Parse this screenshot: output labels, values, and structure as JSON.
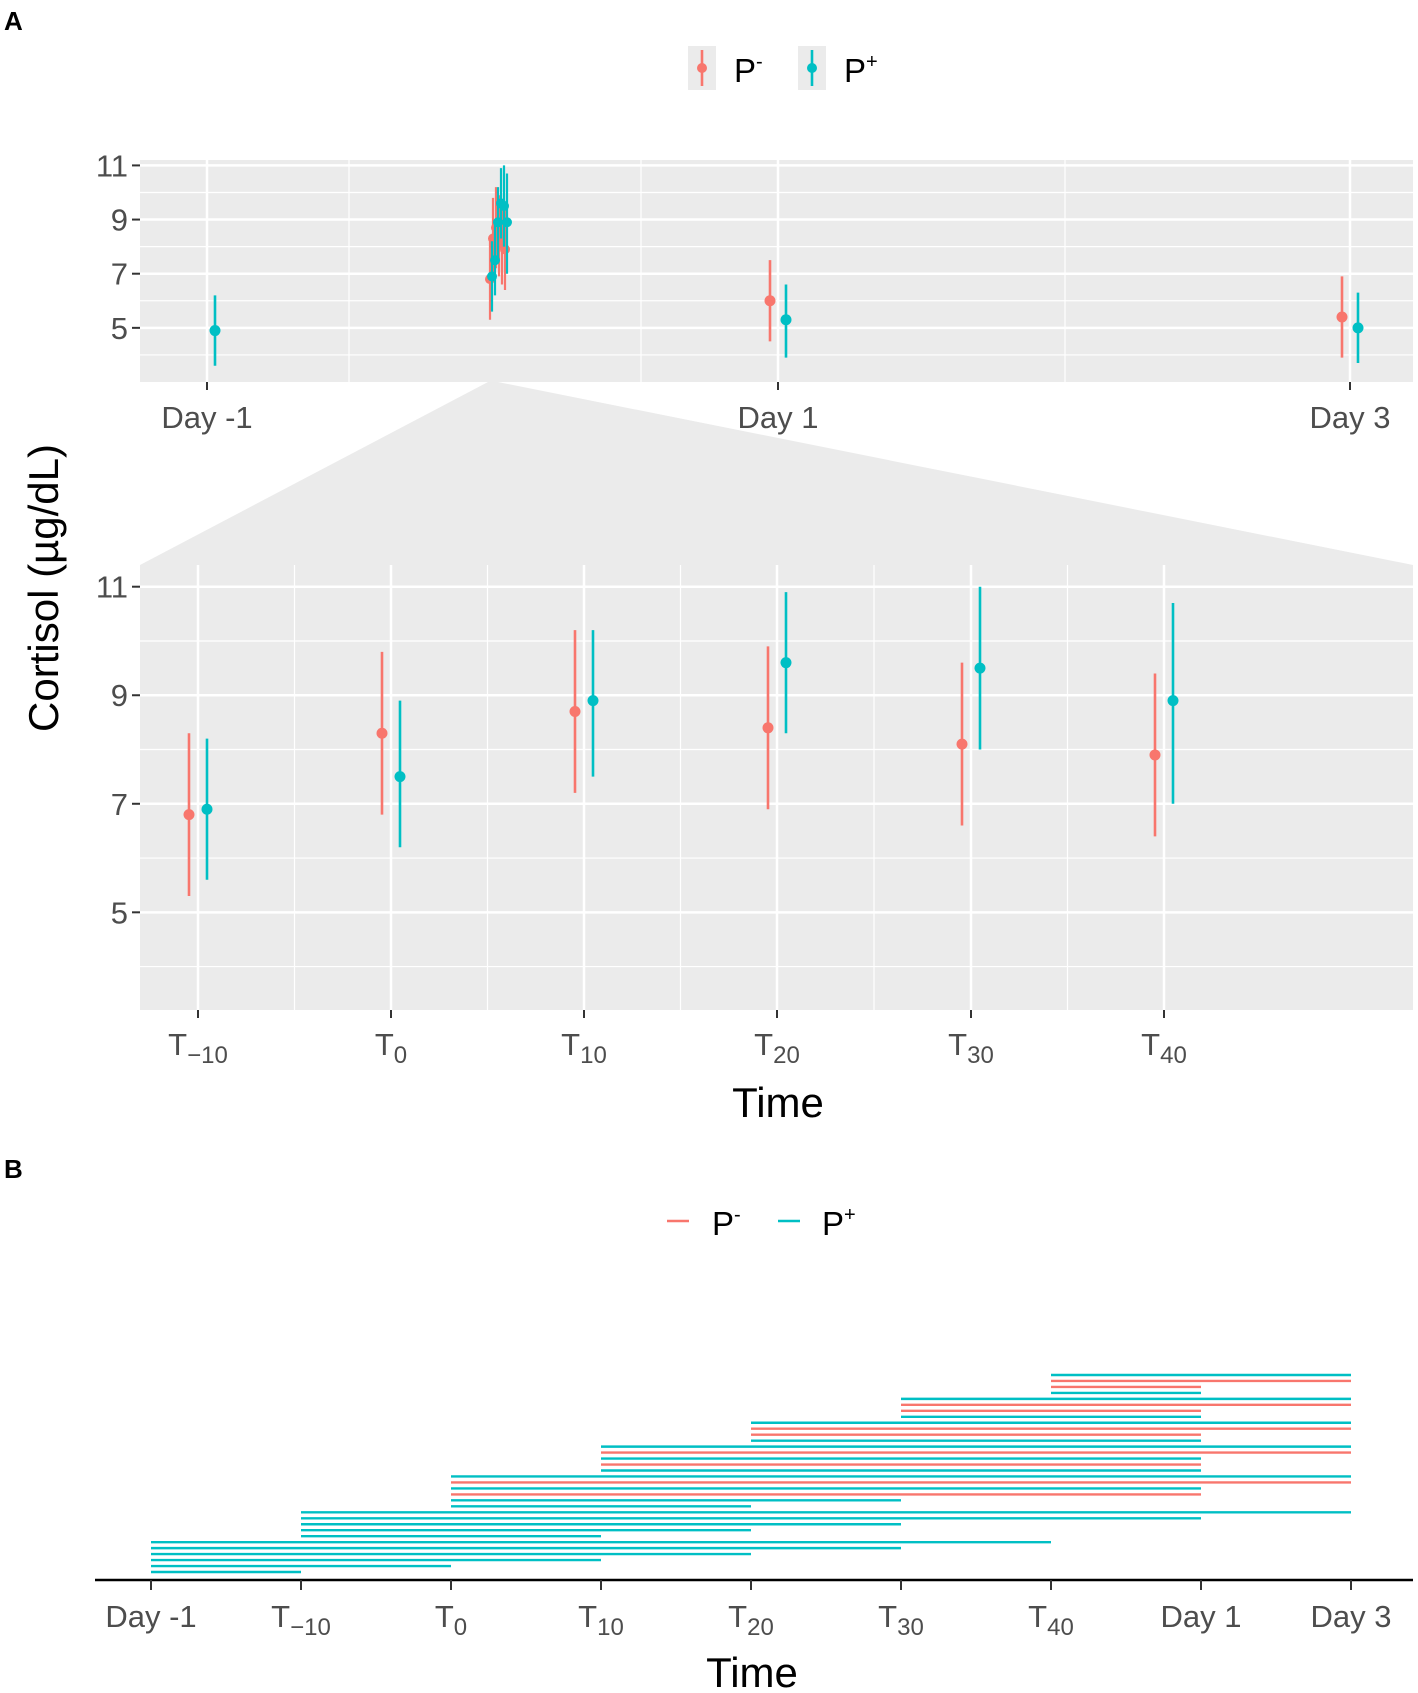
{
  "panel_labels": [
    "A",
    "B"
  ],
  "colors": {
    "p_minus": "#F8766D",
    "p_plus": "#00BFC4",
    "panel_bg": "#EBEBEB",
    "grid": "#FFFFFF",
    "tick_text": "#4D4D4D"
  },
  "legend": {
    "p_minus": {
      "base": "P",
      "sup": "-"
    },
    "p_plus": {
      "base": "P",
      "sup": "+"
    }
  },
  "chart_data": [
    {
      "id": "A-top",
      "type": "scatter",
      "description_kind": "point-range (mean with error bars)",
      "ylabel": "Cortisol (µg/dL)",
      "ylim": [
        3,
        11.2
      ],
      "yticks": [
        5,
        7,
        9,
        11
      ],
      "x_categories": [
        "Day -1",
        "Day 1",
        "Day 3"
      ],
      "series": [
        {
          "name": "P-",
          "points": [
            {
              "x": "Day 1",
              "y": 6.0,
              "low": 4.5,
              "high": 7.5
            },
            {
              "x": "Day 3",
              "y": 5.4,
              "low": 3.9,
              "high": 6.9
            }
          ]
        },
        {
          "name": "P+",
          "points": [
            {
              "x": "Day -1",
              "y": 4.9,
              "low": 3.6,
              "high": 6.2
            },
            {
              "x": "Day 1",
              "y": 5.3,
              "low": 3.9,
              "high": 6.6
            },
            {
              "x": "Day 3",
              "y": 5.0,
              "low": 3.7,
              "high": 6.3
            }
          ]
        }
      ]
    },
    {
      "id": "A-zoom",
      "type": "scatter",
      "description_kind": "point-range (mean with error bars)",
      "xlabel": "Time",
      "ylabel": "Cortisol (µg/dL)",
      "ylim": [
        3.2,
        11.4
      ],
      "yticks": [
        5,
        7,
        9,
        11
      ],
      "x_categories": [
        "T-10",
        "T0",
        "T10",
        "T20",
        "T30",
        "T40"
      ],
      "x_tick_labels": [
        {
          "base": "T",
          "sub": "−10"
        },
        {
          "base": "T",
          "sub": "0"
        },
        {
          "base": "T",
          "sub": "10"
        },
        {
          "base": "T",
          "sub": "20"
        },
        {
          "base": "T",
          "sub": "30"
        },
        {
          "base": "T",
          "sub": "40"
        }
      ],
      "series": [
        {
          "name": "P-",
          "points": [
            {
              "x": "T-10",
              "y": 6.8,
              "low": 5.3,
              "high": 8.3
            },
            {
              "x": "T0",
              "y": 8.3,
              "low": 6.8,
              "high": 9.8
            },
            {
              "x": "T10",
              "y": 8.7,
              "low": 7.2,
              "high": 10.2
            },
            {
              "x": "T20",
              "y": 8.4,
              "low": 6.9,
              "high": 9.9
            },
            {
              "x": "T30",
              "y": 8.1,
              "low": 6.6,
              "high": 9.6
            },
            {
              "x": "T40",
              "y": 7.9,
              "low": 6.4,
              "high": 9.4
            }
          ]
        },
        {
          "name": "P+",
          "points": [
            {
              "x": "T-10",
              "y": 6.9,
              "low": 5.6,
              "high": 8.2
            },
            {
              "x": "T0",
              "y": 7.5,
              "low": 6.2,
              "high": 8.9
            },
            {
              "x": "T10",
              "y": 8.9,
              "low": 7.5,
              "high": 10.2
            },
            {
              "x": "T20",
              "y": 9.6,
              "low": 8.3,
              "high": 10.9
            },
            {
              "x": "T30",
              "y": 9.5,
              "low": 8.0,
              "high": 11.0
            },
            {
              "x": "T40",
              "y": 8.9,
              "low": 7.0,
              "high": 10.7
            }
          ]
        }
      ]
    },
    {
      "id": "B",
      "type": "line",
      "description_kind": "participant timelines (horizontal segments from start to end timepoint)",
      "xlabel": "Time",
      "x_categories": [
        "Day -1",
        "T-10",
        "T0",
        "T10",
        "T20",
        "T30",
        "T40",
        "Day 1",
        "Day 3"
      ],
      "x_tick_labels": [
        {
          "base": "Day -1",
          "sub": ""
        },
        {
          "base": "T",
          "sub": "−10"
        },
        {
          "base": "T",
          "sub": "0"
        },
        {
          "base": "T",
          "sub": "10"
        },
        {
          "base": "T",
          "sub": "20"
        },
        {
          "base": "T",
          "sub": "30"
        },
        {
          "base": "T",
          "sub": "40"
        },
        {
          "base": "Day 1",
          "sub": ""
        },
        {
          "base": "Day 3",
          "sub": ""
        }
      ],
      "segments": [
        {
          "group": "P+",
          "start": "Day -1",
          "end": "T-10"
        },
        {
          "group": "P+",
          "start": "Day -1",
          "end": "T0"
        },
        {
          "group": "P+",
          "start": "Day -1",
          "end": "T10"
        },
        {
          "group": "P+",
          "start": "Day -1",
          "end": "T20"
        },
        {
          "group": "P+",
          "start": "Day -1",
          "end": "T30"
        },
        {
          "group": "P+",
          "start": "Day -1",
          "end": "T40"
        },
        {
          "group": "P+",
          "start": "T-10",
          "end": "T10"
        },
        {
          "group": "P+",
          "start": "T-10",
          "end": "T20"
        },
        {
          "group": "P+",
          "start": "T-10",
          "end": "T30"
        },
        {
          "group": "P+",
          "start": "T-10",
          "end": "Day 1"
        },
        {
          "group": "P+",
          "start": "T-10",
          "end": "Day 3"
        },
        {
          "group": "P+",
          "start": "T0",
          "end": "T20"
        },
        {
          "group": "P+",
          "start": "T0",
          "end": "T30"
        },
        {
          "group": "P-",
          "start": "T0",
          "end": "Day 1"
        },
        {
          "group": "P+",
          "start": "T0",
          "end": "Day 1"
        },
        {
          "group": "P-",
          "start": "T0",
          "end": "Day 3"
        },
        {
          "group": "P+",
          "start": "T0",
          "end": "Day 3"
        },
        {
          "group": "P+",
          "start": "T10",
          "end": "Day 1"
        },
        {
          "group": "P-",
          "start": "T10",
          "end": "Day 1"
        },
        {
          "group": "P+",
          "start": "T10",
          "end": "Day 1"
        },
        {
          "group": "P-",
          "start": "T10",
          "end": "Day 3"
        },
        {
          "group": "P+",
          "start": "T10",
          "end": "Day 3"
        },
        {
          "group": "P+",
          "start": "T20",
          "end": "Day 1"
        },
        {
          "group": "P-",
          "start": "T20",
          "end": "Day 1"
        },
        {
          "group": "P-",
          "start": "T20",
          "end": "Day 3"
        },
        {
          "group": "P+",
          "start": "T20",
          "end": "Day 3"
        },
        {
          "group": "P+",
          "start": "T30",
          "end": "Day 1"
        },
        {
          "group": "P-",
          "start": "T30",
          "end": "Day 1"
        },
        {
          "group": "P-",
          "start": "T30",
          "end": "Day 3"
        },
        {
          "group": "P+",
          "start": "T30",
          "end": "Day 3"
        },
        {
          "group": "P+",
          "start": "T40",
          "end": "Day 1"
        },
        {
          "group": "P-",
          "start": "T40",
          "end": "Day 1"
        },
        {
          "group": "P-",
          "start": "T40",
          "end": "Day 3"
        },
        {
          "group": "P+",
          "start": "T40",
          "end": "Day 3"
        }
      ]
    }
  ]
}
